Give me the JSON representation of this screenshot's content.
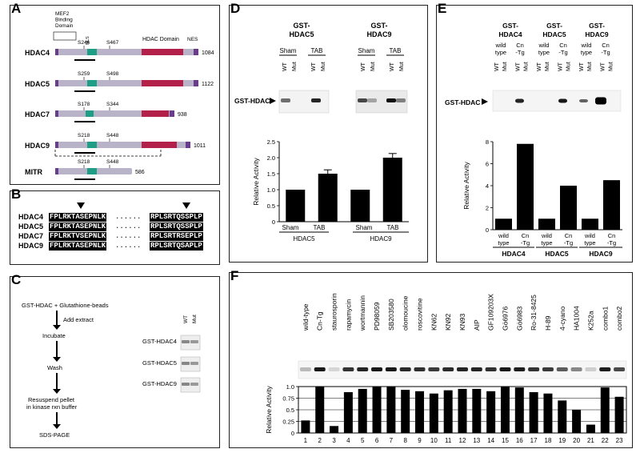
{
  "panel_labels": {
    "A": "A",
    "B": "B",
    "C": "C",
    "D": "D",
    "E": "E",
    "F": "F"
  },
  "panel_a": {
    "mef2_label": [
      "MEF2",
      "Binding",
      "Domain"
    ],
    "nls_label": "NLS",
    "hdac_domain_label": "HDAC Domain",
    "nes_label": "NES",
    "proteins": [
      {
        "name": "HDAC4",
        "length": "1084",
        "s1": "S246",
        "s2": "S467"
      },
      {
        "name": "HDAC5",
        "length": "1122",
        "s1": "S259",
        "s2": "S498"
      },
      {
        "name": "HDAC7",
        "length": "938",
        "s1": "S178",
        "s2": "S344"
      },
      {
        "name": "HDAC9",
        "length": "1011",
        "s1": "S218",
        "s2": "S448"
      },
      {
        "name": "MITR",
        "length": "586",
        "s1": "S218",
        "s2": "S448"
      }
    ],
    "colors": {
      "body": "#b9b3c9",
      "nls": "#1f9e86",
      "hdac": "#b3204a",
      "nes": "#6a3c8c"
    }
  },
  "panel_b": {
    "rows": [
      {
        "name": "HDAC4",
        "left": "FPLRKTASEPNLK",
        "right": "RPLSRTQSSPLP"
      },
      {
        "name": "HDAC5",
        "left": "FPLRKTASEPNLK",
        "right": "RPLSRTQSSPLP"
      },
      {
        "name": "HDAC7",
        "left": "FPLRKTVSEPNLK",
        "right": "RPLSRTRSEPLP"
      },
      {
        "name": "HDAC9",
        "left": "FPLRKTASEPNLK",
        "right": "RPLSRTQSAPLP"
      }
    ],
    "dots": "......"
  },
  "panel_c": {
    "steps": [
      "GST-HDAC + Glutathione-beads",
      "Add extract",
      "Incubate",
      "Wash",
      "Resuspend pellet",
      "in kinase rxn buffer",
      "SDS-PAGE"
    ],
    "lane_labels": [
      "WT",
      "Mut"
    ],
    "gel_rows": [
      "GST-HDAC4",
      "GST-HDAC5",
      "GST-HDAC9"
    ]
  },
  "panel_d": {
    "groups": [
      "GST-HDAC5",
      "GST-HDAC9"
    ],
    "conditions": [
      "Sham",
      "TAB",
      "Sham",
      "TAB"
    ],
    "lanes": [
      "WT",
      "Mut",
      "WT",
      "Mut",
      "WT",
      "Mut",
      "WT",
      "Mut"
    ],
    "band_label": "GST-HDAC",
    "chart_data": {
      "type": "bar",
      "categories": [
        "Sham",
        "TAB",
        "Sham",
        "TAB"
      ],
      "groups": [
        "HDAC5",
        "HDAC9"
      ],
      "values": [
        1.0,
        1.5,
        1.0,
        2.0
      ],
      "errors": [
        0,
        0.12,
        0,
        0.13
      ],
      "ylabel": "Relative Activity",
      "ylim": [
        0,
        2.5
      ],
      "yticks": [
        "0",
        "0.5",
        "1.0",
        "1.5",
        "2.0",
        "2.5"
      ]
    }
  },
  "panel_e": {
    "groups": [
      "GST-HDAC4",
      "GST-HDAC5",
      "GST-HDAC9"
    ],
    "conditions": [
      "wild type",
      "Cn -Tg",
      "wild type",
      "Cn -Tg",
      "wild type",
      "Cn -Tg"
    ],
    "lanes": [
      "WT",
      "Mut",
      "WT",
      "Mut",
      "WT",
      "Mut",
      "WT",
      "Mut",
      "WT",
      "Mut",
      "WT",
      "Mut"
    ],
    "band_label": "GST-HDAC",
    "chart_data": {
      "type": "bar",
      "categories": [
        "wild type",
        "Cn -Tg",
        "wild type",
        "Cn -Tg",
        "wild type",
        "Cn -Tg"
      ],
      "groups": [
        "HDAC4",
        "HDAC5",
        "HDAC9"
      ],
      "values": [
        1.0,
        7.8,
        1.0,
        4.0,
        1.0,
        4.5
      ],
      "ylabel": "Relative Activity",
      "ylim": [
        0,
        8
      ],
      "yticks": [
        "0",
        "2",
        "4",
        "6",
        "8"
      ]
    }
  },
  "panel_f": {
    "lane_names": [
      "wild-type",
      "Cn-Tg",
      "staurosporin",
      "rapamycin",
      "wortmannin",
      "PD98059",
      "SB203580",
      "olomoucine",
      "roscovitine",
      "KN62",
      "KN92",
      "KN93",
      "AIP",
      "GF109203X",
      "Gö6976",
      "Gö6983",
      "Ro-31-8425",
      "H-89",
      "4-cyano",
      "HA1004",
      "K252a",
      "combo1",
      "combo2"
    ],
    "numbers": [
      "1",
      "2",
      "3",
      "4",
      "5",
      "6",
      "7",
      "8",
      "9",
      "10",
      "11",
      "12",
      "13",
      "14",
      "15",
      "16",
      "17",
      "18",
      "19",
      "20",
      "21",
      "22",
      "23"
    ],
    "chart_data": {
      "type": "bar",
      "categories": [
        "1",
        "2",
        "3",
        "4",
        "5",
        "6",
        "7",
        "8",
        "9",
        "10",
        "11",
        "12",
        "13",
        "14",
        "15",
        "16",
        "17",
        "18",
        "19",
        "20",
        "21",
        "22",
        "23"
      ],
      "values": [
        0.27,
        1.0,
        0.15,
        0.88,
        0.95,
        1.0,
        1.0,
        0.93,
        0.9,
        0.85,
        0.92,
        0.95,
        0.95,
        0.9,
        1.0,
        0.98,
        0.88,
        0.85,
        0.7,
        0.5,
        0.18,
        0.98,
        0.78
      ],
      "ylabel": "Relative Activity",
      "ylim": [
        0,
        1.0
      ],
      "yticks": [
        "0",
        "0.25",
        "0.5",
        "0.75",
        "1.0"
      ]
    }
  }
}
